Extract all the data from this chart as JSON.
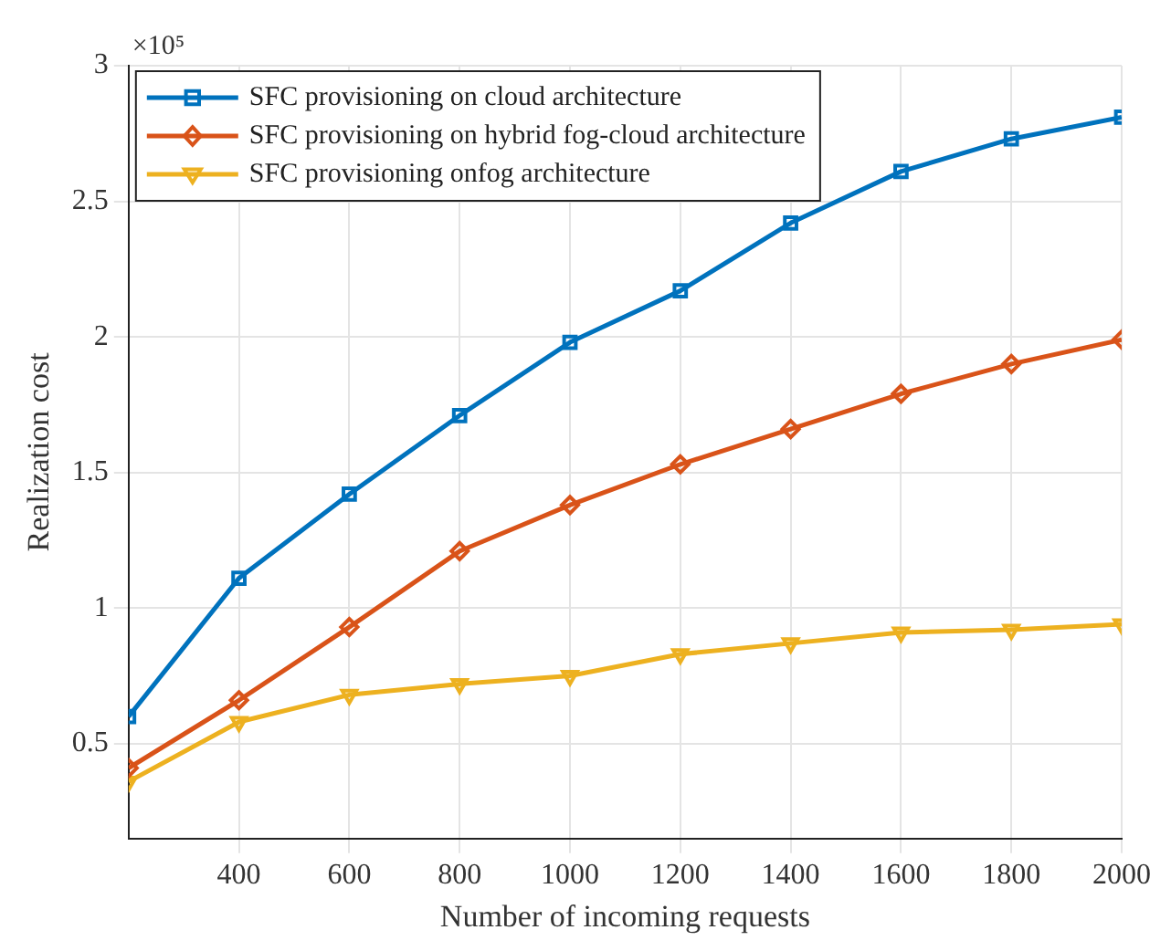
{
  "chart_data": {
    "type": "line",
    "xlabel": "Number of incoming requests",
    "ylabel": "Realization cost",
    "annotations": [
      "×10⁵"
    ],
    "x": [
      200,
      400,
      600,
      800,
      1000,
      1200,
      1400,
      1600,
      1800,
      2000
    ],
    "series": [
      {
        "name": "SFC provisioning on cloud architecture",
        "color": "#0072bd",
        "marker": "square",
        "values": [
          0.6,
          1.11,
          1.42,
          1.71,
          1.98,
          2.17,
          2.42,
          2.61,
          2.73,
          2.81
        ]
      },
      {
        "name": "SFC provisioning on hybrid fog-cloud architecture",
        "color": "#d95319",
        "marker": "diamond",
        "values": [
          0.41,
          0.66,
          0.93,
          1.21,
          1.38,
          1.53,
          1.66,
          1.79,
          1.9,
          1.99
        ]
      },
      {
        "name": "SFC provisioning onfog architecture",
        "color": "#edb120",
        "marker": "triangle",
        "values": [
          0.36,
          0.58,
          0.68,
          0.72,
          0.75,
          0.83,
          0.87,
          0.91,
          0.92,
          0.94
        ]
      }
    ],
    "xlim": [
      200,
      2000
    ],
    "xticks": [
      400,
      600,
      800,
      1000,
      1200,
      1400,
      1600,
      1800,
      2000
    ],
    "ylim": [
      0.15,
      3
    ],
    "yticks": [
      0.5,
      1,
      1.5,
      2,
      2.5,
      3
    ],
    "grid": true,
    "legend": "top left",
    "line_style": "solid"
  }
}
